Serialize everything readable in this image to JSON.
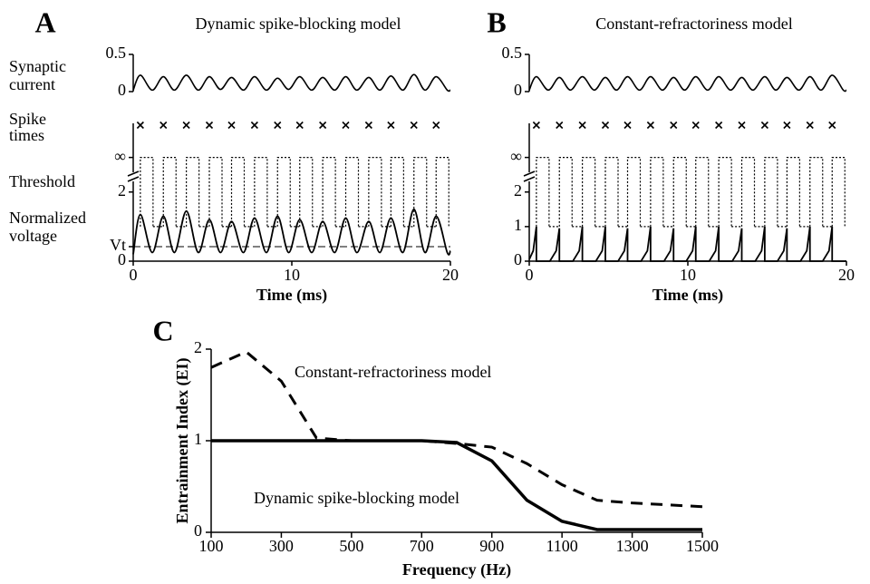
{
  "chart_data": [
    {
      "type": "trace",
      "label": "A",
      "title": "Dynamic spike-blocking model",
      "row_labels": [
        [
          "Synaptic",
          "current"
        ],
        [
          "Spike",
          "times"
        ],
        [
          "Threshold"
        ],
        [
          "Normalized",
          "voltage"
        ]
      ],
      "xlim": [
        0,
        20
      ],
      "xticks": [
        0,
        10,
        20
      ],
      "xlabel": "Time (ms)",
      "t": [
        0,
        0.45,
        1.2,
        1.9,
        2.6,
        3.35,
        4.1,
        4.8,
        5.5,
        6.2,
        6.95,
        7.65,
        8.4,
        9.1,
        9.8,
        10.5,
        11.25,
        11.95,
        12.7,
        13.4,
        14.1,
        14.85,
        15.55,
        16.25,
        17.0,
        17.7,
        18.4,
        19.1,
        19.8,
        20
      ],
      "current": {
        "ylim": [
          0,
          0.5
        ],
        "yticks": [
          0,
          0.5
        ],
        "smooth": true,
        "values": [
          0.02,
          0.22,
          0.02,
          0.2,
          0.02,
          0.22,
          0.02,
          0.2,
          0.03,
          0.19,
          0.02,
          0.2,
          0.02,
          0.18,
          0.03,
          0.2,
          0.02,
          0.19,
          0.02,
          0.2,
          0.02,
          0.19,
          0.02,
          0.21,
          0.02,
          0.23,
          0.02,
          0.2,
          0.02,
          0.02
        ]
      },
      "spikes": [
        0.45,
        1.9,
        3.35,
        4.8,
        6.2,
        7.65,
        9.1,
        10.5,
        11.95,
        13.4,
        14.85,
        16.25,
        17.7,
        19.1
      ],
      "threshold": {
        "rest": 1,
        "blocked": 3,
        "refractory": [
          [
            0.45,
            1.25
          ],
          [
            1.9,
            2.7
          ],
          [
            3.35,
            4.15
          ],
          [
            4.8,
            5.6
          ],
          [
            6.2,
            7.0
          ],
          [
            7.65,
            8.45
          ],
          [
            9.1,
            9.9
          ],
          [
            10.5,
            11.3
          ],
          [
            11.95,
            12.75
          ],
          [
            13.4,
            14.2
          ],
          [
            14.85,
            15.65
          ],
          [
            16.25,
            17.05
          ],
          [
            17.7,
            18.5
          ],
          [
            19.1,
            19.9
          ]
        ]
      },
      "voltage": {
        "ylim": [
          0,
          3.2
        ],
        "yticks": [
          0,
          {
            "value": 0.42,
            "label": "Vt"
          },
          2,
          {
            "value": 3,
            "label": "∞"
          }
        ],
        "reference_tick": 1,
        "smooth": true,
        "values": [
          0.2,
          1.35,
          0.25,
          1.3,
          0.25,
          1.45,
          0.25,
          1.2,
          0.25,
          1.15,
          0.25,
          1.25,
          0.25,
          1.3,
          0.25,
          1.2,
          0.25,
          1.15,
          0.25,
          1.25,
          0.25,
          1.15,
          0.25,
          1.25,
          0.25,
          1.5,
          0.25,
          1.3,
          0.25,
          0.3
        ]
      }
    },
    {
      "type": "trace",
      "label": "B",
      "title": "Constant-refractoriness model",
      "xlim": [
        0,
        20
      ],
      "xticks": [
        0,
        10,
        20
      ],
      "xlabel": "Time (ms)",
      "t": [
        0,
        0.45,
        1.2,
        1.9,
        2.6,
        3.35,
        4.1,
        4.8,
        5.5,
        6.2,
        6.95,
        7.65,
        8.4,
        9.1,
        9.8,
        10.5,
        11.25,
        11.95,
        12.7,
        13.4,
        14.1,
        14.85,
        15.55,
        16.25,
        17.0,
        17.7,
        18.4,
        19.1,
        19.8,
        20
      ],
      "current": {
        "ylim": [
          0,
          0.5
        ],
        "yticks": [
          0,
          0.5
        ],
        "smooth": true,
        "values": [
          0.02,
          0.2,
          0.02,
          0.19,
          0.02,
          0.2,
          0.02,
          0.19,
          0.02,
          0.2,
          0.02,
          0.2,
          0.02,
          0.19,
          0.02,
          0.2,
          0.02,
          0.2,
          0.02,
          0.19,
          0.02,
          0.2,
          0.02,
          0.19,
          0.02,
          0.2,
          0.02,
          0.22,
          0.02,
          0.02
        ]
      },
      "spikes": [
        0.45,
        1.9,
        3.35,
        4.8,
        6.2,
        7.65,
        9.1,
        10.5,
        11.95,
        13.4,
        14.85,
        16.25,
        17.7,
        19.1
      ],
      "threshold": {
        "rest": 1,
        "blocked": 3,
        "refractory": [
          [
            0.45,
            1.25
          ],
          [
            1.9,
            2.7
          ],
          [
            3.35,
            4.15
          ],
          [
            4.8,
            5.6
          ],
          [
            6.2,
            7.0
          ],
          [
            7.65,
            8.45
          ],
          [
            9.1,
            9.9
          ],
          [
            10.5,
            11.3
          ],
          [
            11.95,
            12.75
          ],
          [
            13.4,
            14.2
          ],
          [
            14.85,
            15.65
          ],
          [
            16.25,
            17.05
          ],
          [
            17.7,
            18.5
          ],
          [
            19.1,
            19.9
          ]
        ]
      },
      "voltage": {
        "ylim": [
          0,
          3.2
        ],
        "yticks": [
          0,
          1,
          2,
          {
            "value": 3,
            "label": "∞"
          }
        ],
        "smooth": false,
        "x": [
          0,
          0.25,
          0.45,
          0.45,
          1.3,
          1.7,
          1.9,
          1.9,
          2.75,
          3.15,
          3.35,
          3.35,
          4.2,
          4.6,
          4.8,
          4.8,
          5.6,
          6.0,
          6.2,
          6.2,
          7.05,
          7.45,
          7.65,
          7.65,
          8.5,
          8.9,
          9.1,
          9.1,
          9.9,
          10.3,
          10.5,
          10.5,
          11.35,
          11.75,
          11.95,
          11.95,
          12.8,
          13.2,
          13.4,
          13.4,
          14.25,
          14.65,
          14.85,
          14.85,
          15.65,
          16.05,
          16.25,
          16.25,
          17.1,
          17.5,
          17.7,
          17.7,
          18.5,
          18.9,
          19.1,
          19.1,
          20
        ],
        "values": [
          0.05,
          0.3,
          1,
          0,
          0,
          0.3,
          0.95,
          0,
          0,
          0.3,
          1,
          0,
          0,
          0.3,
          1,
          0,
          0,
          0.3,
          0.95,
          0,
          0,
          0.3,
          1,
          0,
          0,
          0.3,
          0.95,
          0,
          0,
          0.3,
          1,
          0,
          0,
          0.3,
          1,
          0,
          0,
          0.3,
          0.95,
          0,
          0,
          0.3,
          1,
          0,
          0,
          0.3,
          0.95,
          0,
          0,
          0.3,
          1,
          0,
          0,
          0.3,
          1,
          0,
          0
        ]
      }
    },
    {
      "type": "line",
      "label": "C",
      "xlabel": "Frequency (Hz)",
      "ylabel": "Entrainment Index (EI)",
      "x": [
        100,
        200,
        300,
        400,
        500,
        600,
        700,
        800,
        900,
        1000,
        1100,
        1200,
        1300,
        1400,
        1500
      ],
      "xlim": [
        100,
        1500
      ],
      "xticks": [
        100,
        300,
        500,
        700,
        900,
        1100,
        1300,
        1500
      ],
      "ylim": [
        0,
        2
      ],
      "yticks": [
        0,
        1,
        2
      ],
      "series": [
        {
          "name": "Constant-refractoriness model",
          "color": "#000000",
          "dashed": true,
          "values": [
            1.8,
            1.97,
            1.65,
            1.03,
            1.0,
            1.0,
            1.0,
            0.97,
            0.93,
            0.75,
            0.52,
            0.35,
            0.32,
            0.3,
            0.28
          ]
        },
        {
          "name": "Dynamic spike-blocking model",
          "color": "#000000",
          "dashed": false,
          "values": [
            1,
            1,
            1,
            1,
            1,
            1,
            1,
            0.98,
            0.78,
            0.35,
            0.12,
            0.03,
            0.03,
            0.03,
            0.03
          ]
        }
      ]
    }
  ]
}
